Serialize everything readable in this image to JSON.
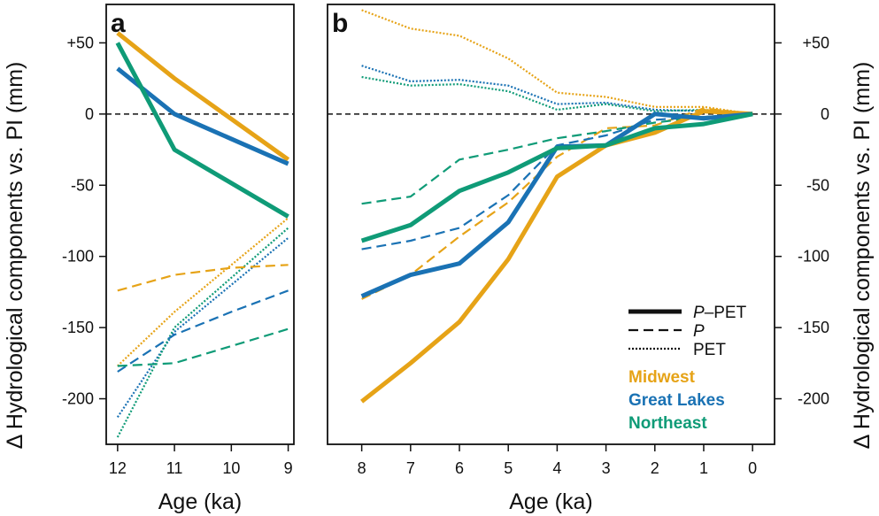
{
  "colors": {
    "Midwest": "#E6A317",
    "Great Lakes": "#1A72B4",
    "Northeast": "#0F9B77"
  },
  "ylabel": "Δ Hydrological components vs. PI (mm)",
  "ylim": [
    -232,
    77
  ],
  "yticks": [
    50,
    0,
    -50,
    -100,
    -150,
    -200
  ],
  "ytick_labels": [
    "+50",
    "0",
    "-50",
    "-100",
    "-150",
    "-200"
  ],
  "legend": {
    "styles": [
      {
        "label": "–PET",
        "italic_prefix": "P",
        "style": "solid"
      },
      {
        "label": "",
        "italic_prefix": "P",
        "style": "dashed"
      },
      {
        "label": "PET",
        "italic_prefix": "",
        "style": "dotted"
      }
    ],
    "regions": [
      "Midwest",
      "Great Lakes",
      "Northeast"
    ]
  },
  "chart_data": [
    {
      "type": "line",
      "panel": "a",
      "xlabel": "Age (ka)",
      "xlim": [
        12.2,
        8.9
      ],
      "xticks": [
        12,
        11,
        10,
        9
      ],
      "zero_line": true,
      "series": [
        {
          "region": "Midwest",
          "component": "P-PET",
          "x": [
            12,
            11,
            9
          ],
          "y": [
            57,
            25,
            -32
          ]
        },
        {
          "region": "Great Lakes",
          "component": "P-PET",
          "x": [
            12,
            11,
            9
          ],
          "y": [
            32,
            0,
            -35
          ]
        },
        {
          "region": "Northeast",
          "component": "P-PET",
          "x": [
            12,
            11,
            9
          ],
          "y": [
            50,
            -25,
            -72
          ]
        },
        {
          "region": "Midwest",
          "component": "P",
          "x": [
            12,
            11,
            10,
            9
          ],
          "y": [
            -124,
            -113,
            -108,
            -106
          ]
        },
        {
          "region": "Great Lakes",
          "component": "P",
          "x": [
            12,
            11,
            10,
            9
          ],
          "y": [
            -181,
            -155,
            -139,
            -124
          ]
        },
        {
          "region": "Northeast",
          "component": "P",
          "x": [
            12,
            11,
            10,
            9
          ],
          "y": [
            -177,
            -175,
            -163,
            -151
          ]
        },
        {
          "region": "Midwest",
          "component": "PET",
          "x": [
            12,
            11,
            9
          ],
          "y": [
            -177,
            -139,
            -73
          ]
        },
        {
          "region": "Great Lakes",
          "component": "PET",
          "x": [
            12,
            11,
            9
          ],
          "y": [
            -213,
            -153,
            -87
          ]
        },
        {
          "region": "Northeast",
          "component": "PET",
          "x": [
            12,
            11,
            9
          ],
          "y": [
            -227,
            -150,
            -80
          ]
        }
      ]
    },
    {
      "type": "line",
      "panel": "b",
      "xlabel": "Age (ka)",
      "xlim": [
        8.7,
        -0.45
      ],
      "xticks": [
        8,
        7,
        6,
        5,
        4,
        3,
        2,
        1,
        0
      ],
      "zero_line": true,
      "series": [
        {
          "region": "Midwest",
          "component": "P-PET",
          "x": [
            8,
            7,
            6,
            5,
            4,
            3,
            2,
            1,
            0
          ],
          "y": [
            -202,
            -175,
            -146,
            -102,
            -44,
            -22,
            -13,
            2,
            0
          ]
        },
        {
          "region": "Great Lakes",
          "component": "P-PET",
          "x": [
            8,
            7,
            6,
            5,
            4,
            3,
            2,
            1,
            0
          ],
          "y": [
            -128,
            -113,
            -105,
            -76,
            -23,
            -22,
            0,
            -3,
            0
          ]
        },
        {
          "region": "Northeast",
          "component": "P-PET",
          "x": [
            8,
            7,
            6,
            5,
            4,
            3,
            2,
            1,
            0
          ],
          "y": [
            -89,
            -78,
            -54,
            -41,
            -24,
            -22,
            -10,
            -7,
            0
          ]
        },
        {
          "region": "Midwest",
          "component": "P",
          "x": [
            8,
            7,
            6,
            5,
            4,
            3,
            2,
            1,
            0
          ],
          "y": [
            -130,
            -113,
            -86,
            -62,
            -30,
            -10,
            -8,
            4,
            0
          ]
        },
        {
          "region": "Great Lakes",
          "component": "P",
          "x": [
            8,
            7,
            6,
            5,
            4,
            3,
            2,
            1,
            0
          ],
          "y": [
            -95,
            -89,
            -80,
            -57,
            -22,
            -15,
            -4,
            -2,
            0
          ]
        },
        {
          "region": "Northeast",
          "component": "P",
          "x": [
            8,
            7,
            6,
            5,
            4,
            3,
            2,
            1,
            0
          ],
          "y": [
            -63,
            -58,
            -32,
            -25,
            -17,
            -12,
            -6,
            -2,
            0
          ]
        },
        {
          "region": "Midwest",
          "component": "PET",
          "x": [
            8,
            7,
            6,
            5,
            4,
            3,
            2,
            1,
            0
          ],
          "y": [
            73,
            60,
            55,
            39,
            15,
            12,
            5,
            5,
            0
          ]
        },
        {
          "region": "Great Lakes",
          "component": "PET",
          "x": [
            8,
            7,
            6,
            5,
            4,
            3,
            2,
            1,
            0
          ],
          "y": [
            34,
            23,
            24,
            20,
            7,
            8,
            3,
            2,
            0
          ]
        },
        {
          "region": "Northeast",
          "component": "PET",
          "x": [
            8,
            7,
            6,
            5,
            4,
            3,
            2,
            1,
            0
          ],
          "y": [
            26,
            20,
            21,
            16,
            3,
            7,
            2,
            3,
            0
          ]
        }
      ]
    }
  ]
}
